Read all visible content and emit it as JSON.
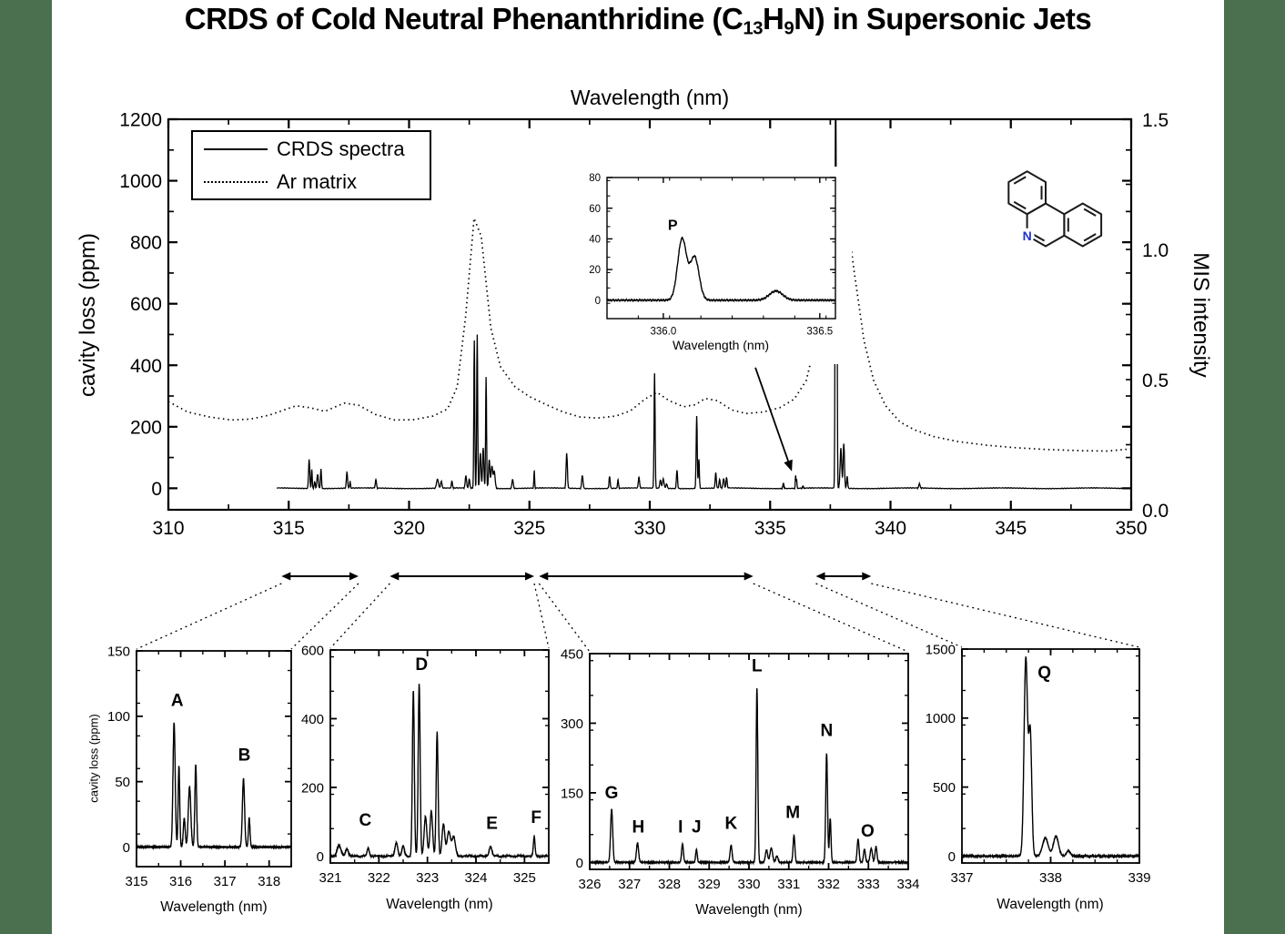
{
  "page": {
    "background": "#4a7050",
    "paper": "#ffffff"
  },
  "title": {
    "prefix": "CRDS of Cold Neutral Phenanthridine (C",
    "sub1": "13",
    "mid": "H",
    "sub2": "9",
    "suffix": "N) in Supersonic Jets"
  },
  "molecule": {
    "name": "phenanthridine",
    "nitrogen_label": "N",
    "nitrogen_color": "#2233cc",
    "bond_color": "#1a1a1a"
  },
  "chart_data": [
    {
      "id": "main",
      "type": "line",
      "xlabel": "Wavelength (nm)",
      "ylabel_left": "cavity loss (ppm)",
      "ylabel_right": "MIS intensity",
      "xlim": [
        310,
        350
      ],
      "ylim_left": [
        -70,
        1200
      ],
      "ylim_right": [
        0,
        1.5
      ],
      "x_majors": [
        310,
        315,
        320,
        325,
        330,
        335,
        340,
        345,
        350
      ],
      "x_minor_step": 2.5,
      "y_left_majors": [
        0,
        200,
        400,
        600,
        800,
        1000,
        1200
      ],
      "y_left_minor_step": 100,
      "y_right_majors": [
        "0.0",
        "0.5",
        "1.0",
        "1.5"
      ],
      "y_right_major_vals": [
        0,
        0.5,
        1.0,
        1.5
      ],
      "y_right_minor_step": 0.25,
      "legend": [
        {
          "label": "CRDS spectra",
          "style": "solid"
        },
        {
          "label": "Ar matrix",
          "style": "dotted"
        }
      ],
      "grid": false,
      "legend_position": "top-left",
      "annotation_arrow_target_nm": 335.9,
      "zoom_regions_nm": [
        [
          314.7,
          317.9
        ],
        [
          319.2,
          325.2
        ],
        [
          325.4,
          334.3
        ],
        [
          336.9,
          339.2
        ]
      ],
      "series": [
        {
          "name": "CRDS spectra",
          "style": "solid",
          "x_start": 314.5,
          "x_end": 350,
          "peaks_ref": "crds_peaks"
        },
        {
          "name": "Ar matrix",
          "style": "dotted",
          "points": [
            [
              310,
              282
            ],
            [
              310.8,
              248
            ],
            [
              311.7,
              232
            ],
            [
              312.6,
              222
            ],
            [
              313.4,
              225
            ],
            [
              314.2,
              238
            ],
            [
              315.3,
              268
            ],
            [
              315.9,
              262
            ],
            [
              316.5,
              250
            ],
            [
              317.3,
              277
            ],
            [
              317.9,
              270
            ],
            [
              318.6,
              240
            ],
            [
              319.4,
              222
            ],
            [
              320.2,
              223
            ],
            [
              321,
              235
            ],
            [
              321.6,
              258
            ],
            [
              322,
              330
            ],
            [
              322.35,
              560
            ],
            [
              322.7,
              878
            ],
            [
              323,
              820
            ],
            [
              323.4,
              520
            ],
            [
              323.8,
              395
            ],
            [
              324.4,
              330
            ],
            [
              325,
              298
            ],
            [
              325.7,
              272
            ],
            [
              326.4,
              248
            ],
            [
              327.1,
              232
            ],
            [
              327.8,
              228
            ],
            [
              328.6,
              235
            ],
            [
              329.2,
              252
            ],
            [
              329.8,
              290
            ],
            [
              330.3,
              312
            ],
            [
              330.8,
              285
            ],
            [
              331.4,
              265
            ],
            [
              331.9,
              272
            ],
            [
              332.3,
              292
            ],
            [
              332.8,
              285
            ],
            [
              333.4,
              255
            ],
            [
              334,
              243
            ],
            [
              334.7,
              248
            ],
            [
              335.4,
              262
            ],
            [
              336,
              290
            ],
            [
              336.5,
              350
            ],
            [
              336.9,
              480
            ],
            [
              337.3,
              760
            ],
            [
              337.6,
              950
            ],
            [
              337.85,
              1015
            ],
            [
              338.1,
              940
            ],
            [
              338.5,
              700
            ],
            [
              338.9,
              480
            ],
            [
              339.3,
              350
            ],
            [
              339.8,
              268
            ],
            [
              340.4,
              215
            ],
            [
              341,
              190
            ],
            [
              341.8,
              168
            ],
            [
              342.8,
              152
            ],
            [
              344,
              140
            ],
            [
              345.2,
              132
            ],
            [
              346.5,
              126
            ],
            [
              348,
              122
            ],
            [
              349,
              121
            ],
            [
              350,
              128
            ]
          ]
        }
      ]
    },
    {
      "id": "inset",
      "type": "line",
      "xlabel": "Wavelength (nm)",
      "xlim": [
        335.82,
        336.55
      ],
      "ylim": [
        -12,
        80
      ],
      "x_majors": [
        "336.0",
        "336.5"
      ],
      "x_major_vals": [
        336.0,
        336.5
      ],
      "x_minor_step": 0.1,
      "y_majors": [
        0,
        20,
        40,
        60,
        80
      ],
      "y_minor_step": 10,
      "noise": 0.7,
      "peak_labels": [
        {
          "t": "P",
          "x": 336.03,
          "y": 46
        }
      ]
    },
    {
      "id": "panel1",
      "type": "line",
      "xlabel": "Wavelength (nm)",
      "ylabel": "cavity loss (ppm)",
      "xlim": [
        315,
        318.5
      ],
      "ylim": [
        -15,
        150
      ],
      "x_majors": [
        315,
        316,
        317,
        318
      ],
      "x_minor_step": 0.5,
      "y_majors": [
        0,
        50,
        100,
        150
      ],
      "y_minor_step": 25,
      "noise": 1.0,
      "peak_labels": [
        {
          "t": "A",
          "x": 315.92,
          "y": 108
        },
        {
          "t": "B",
          "x": 317.44,
          "y": 66
        }
      ]
    },
    {
      "id": "panel2",
      "type": "line",
      "xlabel": "Wavelength (nm)",
      "xlim": [
        321,
        325.5
      ],
      "ylim": [
        -20,
        600
      ],
      "x_majors": [
        321,
        322,
        323,
        324,
        325
      ],
      "x_minor_step": 0.5,
      "y_majors": [
        0,
        200,
        400,
        600
      ],
      "y_minor_step": 100,
      "noise": 3.0,
      "peak_labels": [
        {
          "t": "C",
          "x": 321.72,
          "y": 88
        },
        {
          "t": "D",
          "x": 322.88,
          "y": 542
        },
        {
          "t": "E",
          "x": 324.33,
          "y": 80
        },
        {
          "t": "F",
          "x": 325.24,
          "y": 96
        }
      ]
    },
    {
      "id": "panel3",
      "type": "line",
      "xlabel": "Wavelength (nm)",
      "xlim": [
        326,
        334
      ],
      "ylim": [
        -15,
        450
      ],
      "x_majors": [
        326,
        327,
        328,
        329,
        330,
        331,
        332,
        333,
        334
      ],
      "x_minor_step": 0.5,
      "y_majors": [
        0,
        150,
        300,
        450
      ],
      "y_minor_step": 75,
      "noise": 2.0,
      "peak_labels": [
        {
          "t": "G",
          "x": 326.55,
          "y": 138
        },
        {
          "t": "H",
          "x": 327.22,
          "y": 64
        },
        {
          "t": "I",
          "x": 328.28,
          "y": 64
        },
        {
          "t": "J",
          "x": 328.68,
          "y": 64
        },
        {
          "t": "K",
          "x": 329.55,
          "y": 72
        },
        {
          "t": "L",
          "x": 330.2,
          "y": 412
        },
        {
          "t": "M",
          "x": 331.1,
          "y": 96
        },
        {
          "t": "N",
          "x": 331.95,
          "y": 272
        },
        {
          "t": "O",
          "x": 332.98,
          "y": 56
        }
      ]
    },
    {
      "id": "panel4",
      "type": "line",
      "xlabel": "Wavelength (nm)",
      "xlim": [
        337,
        339
      ],
      "ylim": [
        -50,
        1500
      ],
      "x_majors": [
        337,
        338,
        339
      ],
      "x_minor_step": 0.25,
      "y_majors": [
        0,
        500,
        1000,
        1500
      ],
      "y_minor_step": 250,
      "noise": 5.0,
      "peak_labels": [
        {
          "t": "Q",
          "x": 337.93,
          "y": 1290
        }
      ]
    }
  ],
  "crds_peaks": [
    [
      315.85,
      95,
      0.035
    ],
    [
      315.96,
      62,
      0.025
    ],
    [
      316.08,
      22,
      0.03
    ],
    [
      316.2,
      46,
      0.04
    ],
    [
      316.34,
      63,
      0.028
    ],
    [
      317.42,
      52,
      0.035
    ],
    [
      317.55,
      22,
      0.025
    ],
    [
      318.62,
      28,
      0.035
    ],
    [
      321.18,
      30,
      0.055
    ],
    [
      321.34,
      22,
      0.04
    ],
    [
      321.78,
      24,
      0.03
    ],
    [
      322.36,
      40,
      0.04
    ],
    [
      322.5,
      30,
      0.035
    ],
    [
      322.71,
      480,
      0.028
    ],
    [
      322.83,
      500,
      0.028
    ],
    [
      322.96,
      115,
      0.04
    ],
    [
      323.08,
      130,
      0.038
    ],
    [
      323.2,
      360,
      0.028
    ],
    [
      323.33,
      92,
      0.04
    ],
    [
      323.44,
      72,
      0.05
    ],
    [
      323.54,
      55,
      0.05
    ],
    [
      324.3,
      28,
      0.04
    ],
    [
      325.2,
      55,
      0.024
    ],
    [
      326.55,
      115,
      0.038
    ],
    [
      327.2,
      42,
      0.038
    ],
    [
      328.33,
      40,
      0.032
    ],
    [
      328.68,
      28,
      0.028
    ],
    [
      329.55,
      37,
      0.036
    ],
    [
      330.2,
      375,
      0.03
    ],
    [
      330.44,
      27,
      0.04
    ],
    [
      330.56,
      31,
      0.045
    ],
    [
      330.7,
      14,
      0.04
    ],
    [
      331.13,
      58,
      0.032
    ],
    [
      331.95,
      235,
      0.032
    ],
    [
      332.04,
      95,
      0.028
    ],
    [
      332.74,
      50,
      0.034
    ],
    [
      332.9,
      28,
      0.034
    ],
    [
      333.07,
      30,
      0.04
    ],
    [
      333.19,
      34,
      0.034
    ],
    [
      335.55,
      16,
      0.03
    ],
    [
      336.06,
      40,
      0.02
    ],
    [
      336.1,
      28,
      0.02
    ],
    [
      336.36,
      6,
      0.03
    ],
    [
      337.72,
      1430,
      0.028
    ],
    [
      337.77,
      880,
      0.024
    ],
    [
      337.94,
      130,
      0.045
    ],
    [
      338.06,
      145,
      0.04
    ],
    [
      338.2,
      40,
      0.03
    ],
    [
      341.2,
      14,
      0.04
    ]
  ]
}
